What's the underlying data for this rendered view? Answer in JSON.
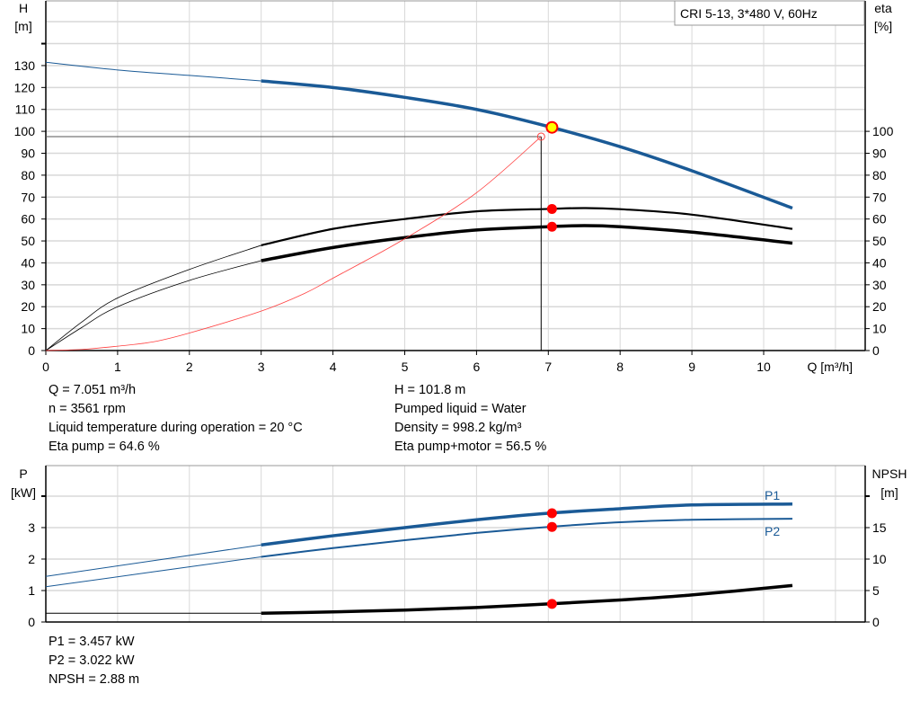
{
  "legend_box": "CRI 5-13, 3*480 V, 60Hz",
  "info_top_left": [
    "Q = 7.051 m³/h",
    "n = 3561 rpm",
    "Liquid temperature during operation = 20 °C",
    "Eta pump = 64.6 %"
  ],
  "info_top_right": [
    "H = 101.8 m",
    "Pumped liquid = Water",
    "Density = 998.2 kg/m³",
    "Eta pump+motor = 56.5 %"
  ],
  "info_bottom": [
    "P1 = 3.457 kW",
    "P2 = 3.022 kW",
    "NPSH = 2.88 m"
  ],
  "colors": {
    "pump_curve": "#1a5a96",
    "efficiency": "#000000",
    "system_curve": "#ff4040",
    "duty_point": "#ff0000",
    "duty_point_fill": "#ffff00",
    "grid": "#d8d8d8"
  },
  "chart_data": [
    {
      "type": "line",
      "xlabel": "Q [m³/h]",
      "ylabel_left": [
        "H",
        "[m]"
      ],
      "ylabel_right": [
        "eta",
        "[%]"
      ],
      "xlim": [
        0,
        11.5
      ],
      "ylim_left": [
        0,
        160
      ],
      "ylim_right": [
        0,
        160
      ],
      "x_ticks": [
        "0",
        "1",
        "2",
        "3",
        "4",
        "5",
        "6",
        "7",
        "8",
        "9",
        "10"
      ],
      "y_ticks_left": [
        "0",
        "10",
        "20",
        "30",
        "40",
        "50",
        "60",
        "70",
        "80",
        "90",
        "100",
        "110",
        "120",
        "130"
      ],
      "y_ticks_right": [
        "0",
        "10",
        "20",
        "30",
        "40",
        "50",
        "60",
        "70",
        "80",
        "90",
        "100"
      ],
      "grid": true,
      "series": [
        {
          "id": "head",
          "axis": "left",
          "x": [
            0,
            1,
            2,
            3,
            4,
            5,
            6,
            7,
            8,
            9,
            10.4
          ],
          "y": [
            131.5,
            128,
            125.5,
            123,
            120,
            115.5,
            110,
            102.2,
            93,
            82,
            65
          ],
          "thick_from": 3
        },
        {
          "id": "eta_pump",
          "axis": "right",
          "x": [
            0,
            0.5,
            1,
            2,
            3,
            4,
            5,
            6,
            7,
            7.5,
            8,
            9,
            10.4
          ],
          "y": [
            0,
            13,
            24,
            37,
            48,
            55.5,
            60,
            63.5,
            64.6,
            65,
            64.5,
            62,
            55.5
          ],
          "thick_from": 3
        },
        {
          "id": "eta_pump_motor",
          "axis": "right",
          "x": [
            0,
            0.5,
            1,
            2,
            3,
            4,
            5,
            6,
            7,
            7.5,
            8,
            9,
            10.4
          ],
          "y": [
            0,
            10.5,
            20,
            32,
            41,
            47,
            51.5,
            55,
            56.5,
            57,
            56.5,
            54,
            49
          ],
          "thick_from": 3
        },
        {
          "id": "system",
          "axis": "left",
          "x": [
            0,
            0.5,
            1,
            1.5,
            2,
            3,
            3.6,
            4,
            5,
            6,
            6.9
          ],
          "y": [
            0,
            0.5,
            2,
            4,
            8,
            18,
            26,
            33,
            51,
            72,
            97.6
          ]
        }
      ],
      "duty_point": {
        "Q": 7.051,
        "H": 101.8,
        "eta_pump": 64.6,
        "eta_pump_motor": 56.5
      },
      "system_point": {
        "Q": 6.9,
        "H": 97.6
      }
    },
    {
      "type": "line",
      "ylabel_left": [
        "P",
        "[kW]"
      ],
      "ylabel_right": [
        "NPSH",
        "[m]"
      ],
      "xlim": [
        0,
        11.5
      ],
      "ylim_left": [
        0,
        4.6
      ],
      "ylim_right": [
        0,
        23
      ],
      "y_ticks_left": [
        "0",
        "1",
        "2",
        "3"
      ],
      "y_ticks_right": [
        "0",
        "5",
        "10",
        "15"
      ],
      "grid": true,
      "series": [
        {
          "id": "P1",
          "name": "P1",
          "axis": "left",
          "x": [
            0,
            3,
            4,
            5,
            6,
            7,
            8,
            9,
            10.4
          ],
          "y": [
            1.45,
            2.45,
            2.74,
            3.0,
            3.25,
            3.457,
            3.6,
            3.72,
            3.75
          ],
          "thick_from": 3
        },
        {
          "id": "P2",
          "name": "P2",
          "axis": "left",
          "x": [
            0,
            3,
            4,
            5,
            6,
            7,
            8,
            9,
            10.4
          ],
          "y": [
            1.12,
            2.07,
            2.35,
            2.6,
            2.83,
            3.022,
            3.17,
            3.25,
            3.28
          ],
          "thick_from": 3
        },
        {
          "id": "NPSH",
          "axis": "right",
          "x": [
            0,
            3,
            4,
            5,
            6,
            7,
            8,
            9,
            10.4
          ],
          "y": [
            1.4,
            1.4,
            1.6,
            1.9,
            2.3,
            2.88,
            3.5,
            4.3,
            5.8
          ],
          "thick_from": 3
        }
      ],
      "duty_point": {
        "Q": 7.051,
        "P1": 3.457,
        "P2": 3.022,
        "NPSH": 2.88
      }
    }
  ]
}
